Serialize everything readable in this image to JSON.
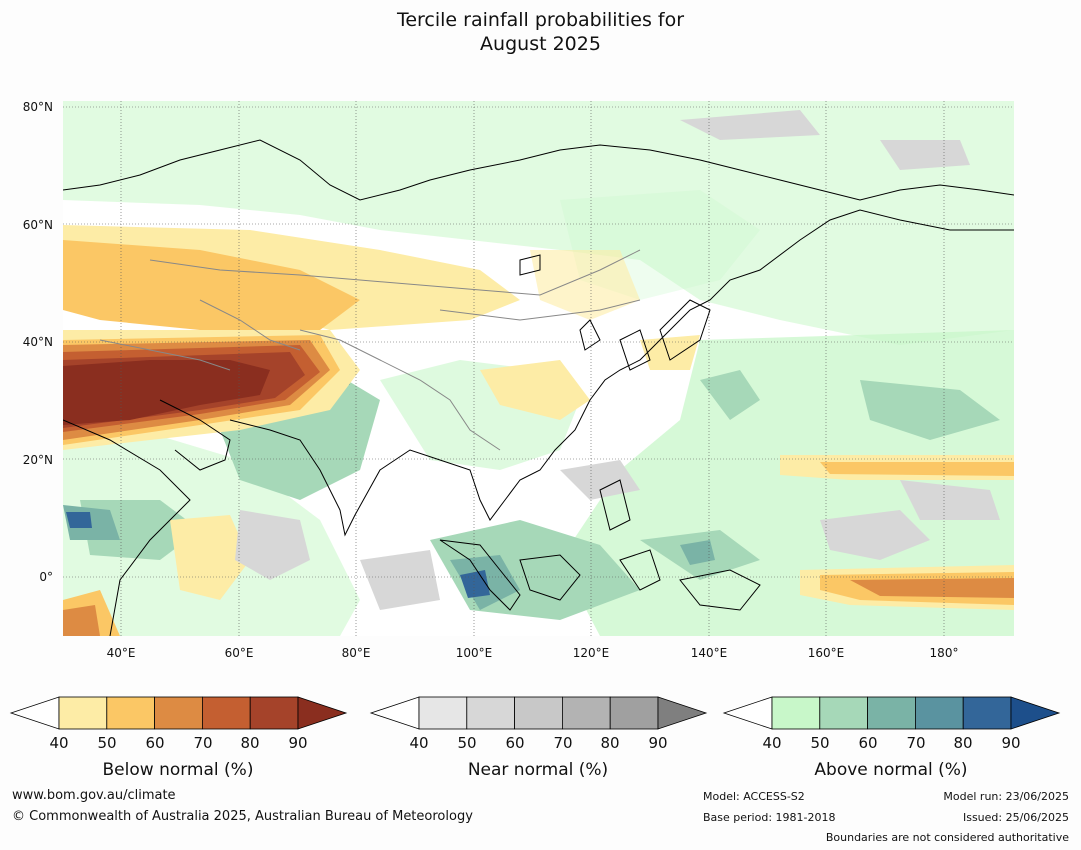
{
  "title_line1": "Tercile rainfall probabilities for",
  "title_line2": "August 2025",
  "map": {
    "lat_labels": [
      "80°N",
      "60°N",
      "40°N",
      "20°N",
      "0°"
    ],
    "lon_labels": [
      "40°E",
      "60°E",
      "80°E",
      "100°E",
      "120°E",
      "140°E",
      "160°E",
      "180°"
    ],
    "lat_values": [
      80,
      60,
      40,
      20,
      0
    ],
    "lon_values": [
      40,
      60,
      80,
      100,
      120,
      140,
      160,
      180
    ],
    "extent": {
      "lon_min": 30,
      "lon_max": 192,
      "lat_min": -10,
      "lat_max": 81
    }
  },
  "colorbars": [
    {
      "name": "below",
      "title": "Below normal (%)",
      "ticks": [
        "40",
        "50",
        "60",
        "70",
        "80",
        "90"
      ],
      "colors": [
        "#ffffff",
        "#fdeca6",
        "#fbc765",
        "#dd8b43",
        "#c45f31",
        "#a5432a",
        "#8a2e1f"
      ]
    },
    {
      "name": "near",
      "title": "Near normal (%)",
      "ticks": [
        "40",
        "50",
        "60",
        "70",
        "80",
        "90"
      ],
      "colors": [
        "#ffffff",
        "#e6e6e6",
        "#d7d7d7",
        "#c8c8c8",
        "#b3b3b3",
        "#a0a0a0",
        "#7f7f7f"
      ]
    },
    {
      "name": "above",
      "title": "Above normal (%)",
      "ticks": [
        "40",
        "50",
        "60",
        "70",
        "80",
        "90"
      ],
      "colors": [
        "#ffffff",
        "#c8f7c9",
        "#a6d8b8",
        "#7ab3a6",
        "#5a93a0",
        "#336699",
        "#1d4f8b"
      ]
    }
  ],
  "footer": {
    "website": "www.bom.gov.au/climate",
    "copyright": "© Commonwealth of Australia 2025, Australian Bureau of Meteorology",
    "model": "Model: ACCESS-S2",
    "base_period": "Base period: 1981-2018",
    "model_run": "Model run: 23/06/2025",
    "issued": "Issued: 25/06/2025",
    "boundaries": "Boundaries are not considered authoritative"
  }
}
